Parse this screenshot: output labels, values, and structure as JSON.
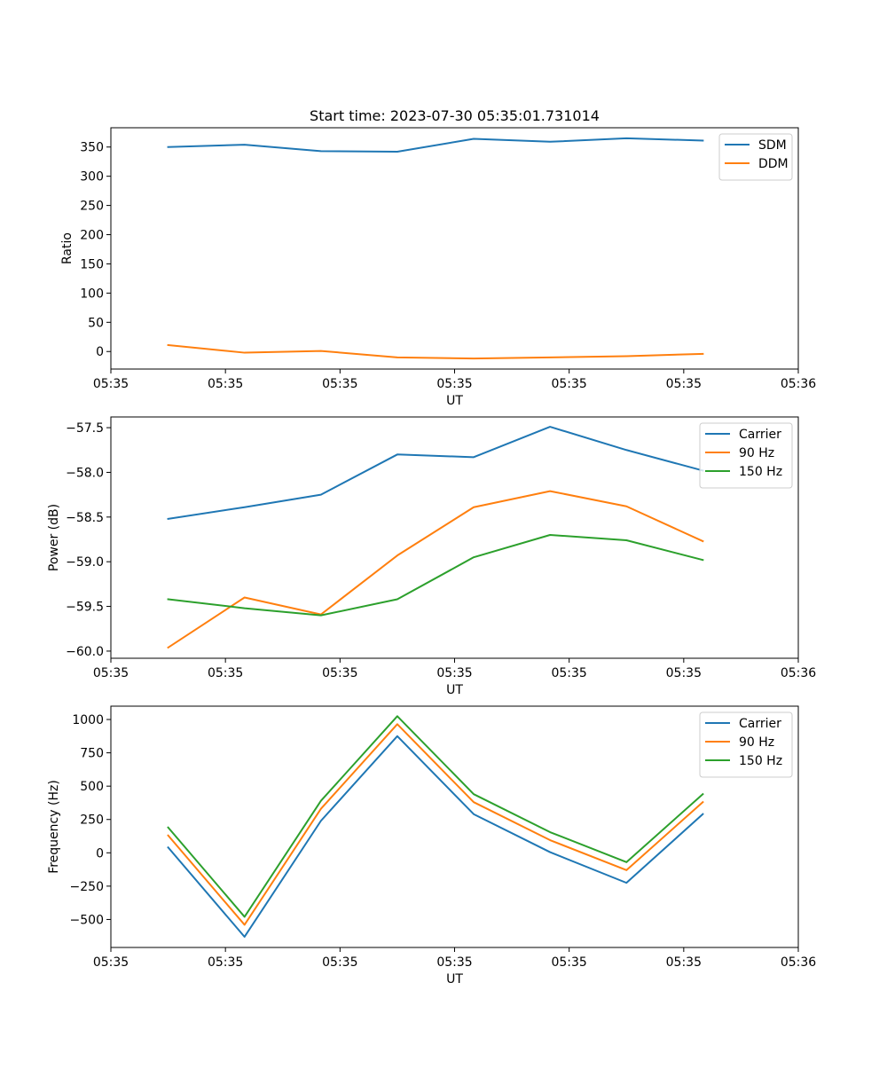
{
  "figure": {
    "title": "Start time: 2023-07-30 05:35:01.731014"
  },
  "chart_data": [
    {
      "type": "line",
      "title": "Start time: 2023-07-30 05:35:01.731014",
      "xlabel": "UT",
      "ylabel": "Ratio",
      "x": [
        1,
        2,
        3,
        4,
        5,
        6,
        7,
        8
      ],
      "xlim": [
        0.25,
        9.25
      ],
      "xticks": [
        0.25,
        1.75,
        3.25,
        4.75,
        6.25,
        7.75,
        9.25
      ],
      "xtick_labels": [
        "05:35",
        "05:35",
        "05:35",
        "05:35",
        "05:35",
        "05:35",
        "05:36"
      ],
      "ylim": [
        -30,
        383
      ],
      "yticks": [
        0,
        50,
        100,
        150,
        200,
        250,
        300,
        350
      ],
      "ytick_labels": [
        "0",
        "50",
        "100",
        "150",
        "200",
        "250",
        "300",
        "350"
      ],
      "legend_position": "top-right",
      "series": [
        {
          "name": "SDM",
          "color": "#1f77b4",
          "values": [
            350,
            354,
            343,
            342,
            364,
            359,
            365,
            361
          ]
        },
        {
          "name": "DDM",
          "color": "#ff7f0e",
          "values": [
            11,
            -2,
            1,
            -10,
            -12,
            -10,
            -8,
            -4
          ]
        }
      ]
    },
    {
      "type": "line",
      "title": "",
      "xlabel": "UT",
      "ylabel": "Power (dB)",
      "x": [
        1,
        2,
        3,
        4,
        5,
        6,
        7,
        8
      ],
      "xlim": [
        0.25,
        9.25
      ],
      "xticks": [
        0.25,
        1.75,
        3.25,
        4.75,
        6.25,
        7.75,
        9.25
      ],
      "xtick_labels": [
        "05:35",
        "05:35",
        "05:35",
        "05:35",
        "05:35",
        "05:35",
        "05:36"
      ],
      "ylim": [
        -60.08,
        -57.38
      ],
      "yticks": [
        -60.0,
        -59.5,
        -59.0,
        -58.5,
        -58.0,
        -57.5
      ],
      "ytick_labels": [
        "−60.0",
        "−59.5",
        "−59.0",
        "−58.5",
        "−58.0",
        "−57.5"
      ],
      "legend_position": "top-right",
      "series": [
        {
          "name": "Carrier",
          "color": "#1f77b4",
          "values": [
            -58.52,
            -58.39,
            -58.25,
            -57.8,
            -57.83,
            -57.49,
            -57.75,
            -57.98
          ]
        },
        {
          "name": "90 Hz",
          "color": "#ff7f0e",
          "values": [
            -59.96,
            -59.4,
            -59.59,
            -58.93,
            -58.39,
            -58.21,
            -58.38,
            -58.77
          ]
        },
        {
          "name": "150 Hz",
          "color": "#2ca02c",
          "values": [
            -59.42,
            -59.52,
            -59.6,
            -59.42,
            -58.95,
            -58.7,
            -58.76,
            -58.98
          ]
        }
      ]
    },
    {
      "type": "line",
      "title": "",
      "xlabel": "UT",
      "ylabel": "Frequency (Hz)",
      "x": [
        1,
        2,
        3,
        4,
        5,
        6,
        7,
        8
      ],
      "xlim": [
        0.25,
        9.25
      ],
      "xticks": [
        0.25,
        1.75,
        3.25,
        4.75,
        6.25,
        7.75,
        9.25
      ],
      "xtick_labels": [
        "05:35",
        "05:35",
        "05:35",
        "05:35",
        "05:35",
        "05:35",
        "05:36"
      ],
      "ylim": [
        -710,
        1100
      ],
      "yticks": [
        -500,
        -250,
        0,
        250,
        500,
        750,
        1000
      ],
      "ytick_labels": [
        "−500",
        "−250",
        "0",
        "250",
        "500",
        "750",
        "1000"
      ],
      "legend_position": "top-right",
      "series": [
        {
          "name": "Carrier",
          "color": "#1f77b4",
          "values": [
            40,
            -630,
            240,
            875,
            290,
            5,
            -225,
            290
          ]
        },
        {
          "name": "90 Hz",
          "color": "#ff7f0e",
          "values": [
            130,
            -540,
            330,
            965,
            380,
            95,
            -130,
            380
          ]
        },
        {
          "name": "150 Hz",
          "color": "#2ca02c",
          "values": [
            190,
            -480,
            390,
            1025,
            440,
            155,
            -70,
            440
          ]
        }
      ]
    }
  ]
}
